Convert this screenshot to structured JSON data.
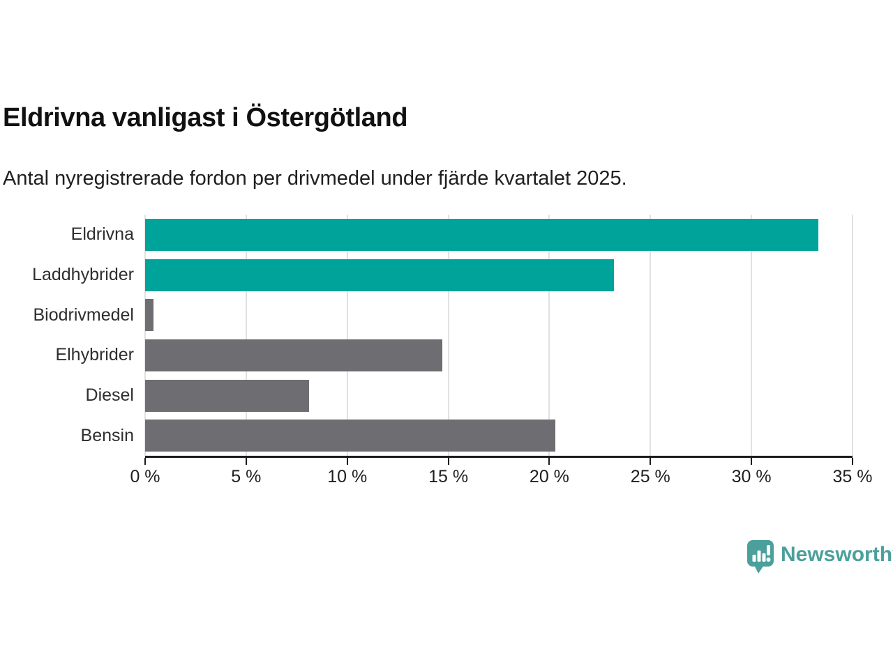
{
  "chart_data": {
    "type": "bar",
    "orientation": "horizontal",
    "title": "Eldrivna vanligast i Östergötland",
    "subtitle": "Antal nyregistrerade fordon per drivmedel under fjärde kvartalet 2025.",
    "categories": [
      "Eldrivna",
      "Laddhybrider",
      "Biodrivmedel",
      "Elhybrider",
      "Diesel",
      "Bensin"
    ],
    "values": [
      33.3,
      23.2,
      0.4,
      14.7,
      8.1,
      20.3
    ],
    "unit": "%",
    "bar_colors": [
      "#00a39a",
      "#00a39a",
      "#6e6e72",
      "#6e6e72",
      "#6e6e72",
      "#6e6e72"
    ],
    "xlim": [
      0,
      35
    ],
    "xticks": [
      0,
      5,
      10,
      15,
      20,
      25,
      30,
      35
    ],
    "xtick_labels": [
      "0 %",
      "5 %",
      "10 %",
      "15 %",
      "20 %",
      "25 %",
      "30 %",
      "35 %"
    ],
    "xlabel": "",
    "ylabel": "",
    "grid": true,
    "legend": false
  },
  "footer": {
    "brand": "Newsworthy",
    "brand_color": "#4ba09b",
    "logo_icon": "speech-bubble-bar-chart-icon"
  },
  "colors": {
    "accent_teal": "#00a39a",
    "bar_gray": "#6e6e72",
    "gridline": "#e1e1e1",
    "axis_line": "#1c1c1c",
    "title_text": "#111111",
    "body_text": "#1f1f1f"
  }
}
